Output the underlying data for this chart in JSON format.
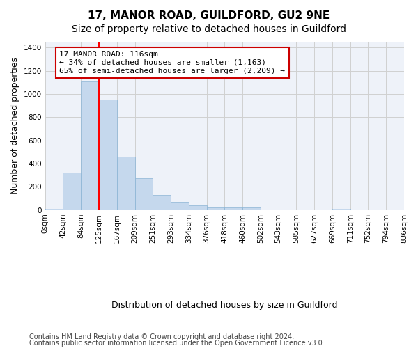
{
  "title1": "17, MANOR ROAD, GUILDFORD, GU2 9NE",
  "title2": "Size of property relative to detached houses in Guildford",
  "xlabel": "Distribution of detached houses by size in Guildford",
  "ylabel": "Number of detached properties",
  "bar_labels": [
    "0sqm",
    "42sqm",
    "84sqm",
    "125sqm",
    "167sqm",
    "209sqm",
    "251sqm",
    "293sqm",
    "334sqm",
    "376sqm",
    "418sqm",
    "460sqm",
    "502sqm",
    "543sqm",
    "585sqm",
    "627sqm",
    "669sqm",
    "711sqm",
    "752sqm",
    "794sqm",
    "836sqm"
  ],
  "bar_values": [
    10,
    325,
    1110,
    950,
    460,
    275,
    130,
    70,
    40,
    25,
    25,
    20,
    0,
    0,
    0,
    0,
    12,
    0,
    0,
    0
  ],
  "bar_color": "#c5d8ed",
  "bar_edge_color": "#8ab4d4",
  "red_line_x": 2.5,
  "annotation_text": "17 MANOR ROAD: 116sqm\n← 34% of detached houses are smaller (1,163)\n65% of semi-detached houses are larger (2,209) →",
  "annotation_box_color": "#ffffff",
  "annotation_box_edge": "#cc0000",
  "ylim": [
    0,
    1450
  ],
  "yticks": [
    0,
    200,
    400,
    600,
    800,
    1000,
    1200,
    1400
  ],
  "grid_color": "#d0d0d0",
  "background_color": "#eef2f9",
  "footer1": "Contains HM Land Registry data © Crown copyright and database right 2024.",
  "footer2": "Contains public sector information licensed under the Open Government Licence v3.0.",
  "title1_fontsize": 11,
  "title2_fontsize": 10,
  "xlabel_fontsize": 9,
  "ylabel_fontsize": 9,
  "tick_fontsize": 7.5,
  "annotation_fontsize": 8,
  "footer_fontsize": 7
}
